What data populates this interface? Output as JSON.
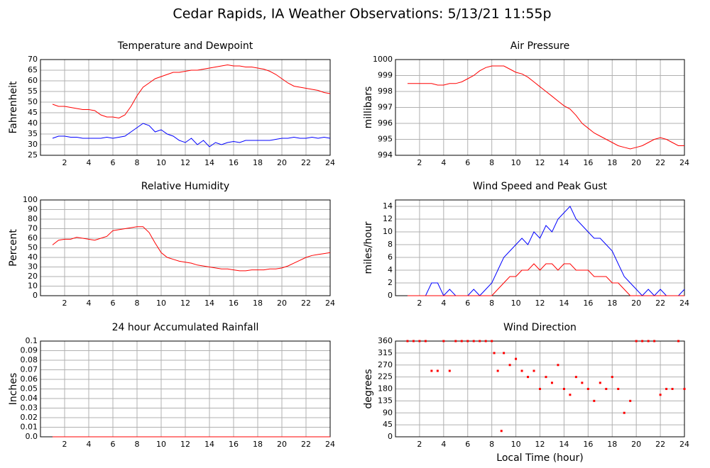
{
  "title": "Cedar Rapids, IA Weather Observations: 5/13/21 11:55p",
  "chart_data": [
    {
      "type": "line",
      "title": "Temperature and Dewpoint",
      "ylabel": "Fahrenheit",
      "x": [
        1,
        1.5,
        2,
        2.5,
        3,
        3.5,
        4,
        4.5,
        5,
        5.5,
        6,
        6.5,
        7,
        7.5,
        8,
        8.5,
        9,
        9.5,
        10,
        10.5,
        11,
        11.5,
        12,
        12.5,
        13,
        13.5,
        14,
        14.5,
        15,
        15.5,
        16,
        16.5,
        17,
        17.5,
        18,
        18.5,
        19,
        19.5,
        20,
        20.5,
        21,
        21.5,
        22,
        22.5,
        23,
        23.5,
        24
      ],
      "series": [
        {
          "color": "#ff0000",
          "values": [
            49,
            48,
            48,
            47.5,
            47,
            46.5,
            46.5,
            46,
            44,
            43,
            43,
            42.5,
            44,
            48,
            53,
            57,
            59,
            61,
            62,
            63,
            64,
            64,
            64.5,
            65,
            65,
            65.5,
            66,
            66.5,
            67,
            67.5,
            67,
            67,
            66.5,
            66.5,
            66,
            65.5,
            64.5,
            63,
            61,
            59,
            57.5,
            57,
            56.5,
            56,
            55.5,
            54.5,
            54
          ]
        },
        {
          "color": "#0000ff",
          "values": [
            33,
            34,
            34,
            33.5,
            33.5,
            33,
            33,
            33,
            33,
            33.5,
            33,
            33.5,
            34,
            36,
            38,
            40,
            39,
            36,
            37,
            35,
            34,
            32,
            31,
            33,
            30,
            32,
            29,
            31,
            30,
            31,
            31.5,
            31,
            32,
            32,
            32,
            32,
            32,
            32.5,
            33,
            33,
            33.5,
            33,
            33,
            33.5,
            33,
            33.5,
            33
          ]
        }
      ],
      "xlim": [
        0,
        24
      ],
      "xticks": [
        2,
        4,
        6,
        8,
        10,
        12,
        14,
        16,
        18,
        20,
        22,
        24
      ],
      "ylim": [
        25,
        70
      ],
      "yticks": [
        25,
        30,
        35,
        40,
        45,
        50,
        55,
        60,
        65,
        70
      ],
      "grid": true
    },
    {
      "type": "line",
      "title": "Air Pressure",
      "ylabel": "millibars",
      "x": [
        1,
        1.5,
        2,
        2.5,
        3,
        3.5,
        4,
        4.5,
        5,
        5.5,
        6,
        6.5,
        7,
        7.5,
        8,
        8.5,
        9,
        9.5,
        10,
        10.5,
        11,
        11.5,
        12,
        12.5,
        13,
        13.5,
        14,
        14.5,
        15,
        15.5,
        16,
        16.5,
        17,
        17.5,
        18,
        18.5,
        19,
        19.5,
        20,
        20.5,
        21,
        21.5,
        22,
        22.5,
        23,
        23.5,
        24
      ],
      "series": [
        {
          "color": "#ff0000",
          "values": [
            998.5,
            998.5,
            998.5,
            998.5,
            998.5,
            998.4,
            998.4,
            998.5,
            998.5,
            998.6,
            998.8,
            999.0,
            999.3,
            999.5,
            999.6,
            999.6,
            999.6,
            999.4,
            999.2,
            999.1,
            998.9,
            998.6,
            998.3,
            998.0,
            997.7,
            997.4,
            997.1,
            996.9,
            996.5,
            996.0,
            995.7,
            995.4,
            995.2,
            995.0,
            994.8,
            994.6,
            994.5,
            994.4,
            994.5,
            994.6,
            994.8,
            995.0,
            995.1,
            995.0,
            994.8,
            994.6,
            994.6
          ]
        }
      ],
      "xlim": [
        0,
        24
      ],
      "xticks": [
        2,
        4,
        6,
        8,
        10,
        12,
        14,
        16,
        18,
        20,
        22,
        24
      ],
      "ylim": [
        994,
        1000
      ],
      "yticks": [
        994,
        995,
        996,
        997,
        998,
        999,
        1000
      ],
      "grid": true
    },
    {
      "type": "line",
      "title": "Relative Humidity",
      "ylabel": "Percent",
      "x": [
        1,
        1.5,
        2,
        2.5,
        3,
        3.5,
        4,
        4.5,
        5,
        5.5,
        6,
        6.5,
        7,
        7.5,
        8,
        8.5,
        9,
        9.5,
        10,
        10.5,
        11,
        11.5,
        12,
        12.5,
        13,
        13.5,
        14,
        14.5,
        15,
        15.5,
        16,
        16.5,
        17,
        17.5,
        18,
        18.5,
        19,
        19.5,
        20,
        20.5,
        21,
        21.5,
        22,
        22.5,
        23,
        23.5,
        24
      ],
      "series": [
        {
          "color": "#ff0000",
          "values": [
            53,
            58,
            59,
            59,
            61,
            60,
            59,
            58,
            60,
            62,
            68,
            69,
            70,
            71,
            72,
            72,
            66,
            55,
            45,
            40,
            38,
            36,
            35,
            34,
            32,
            31,
            30,
            29,
            28,
            28,
            27,
            26,
            26,
            27,
            27,
            27,
            28,
            28,
            29,
            31,
            34,
            37,
            40,
            42,
            43,
            44,
            45
          ]
        }
      ],
      "xlim": [
        0,
        24
      ],
      "xticks": [
        2,
        4,
        6,
        8,
        10,
        12,
        14,
        16,
        18,
        20,
        22,
        24
      ],
      "ylim": [
        0,
        100
      ],
      "yticks": [
        0,
        10,
        20,
        30,
        40,
        50,
        60,
        70,
        80,
        90,
        100
      ],
      "grid": true
    },
    {
      "type": "line",
      "title": "Wind Speed and Peak Gust",
      "ylabel": "miles/hour",
      "x": [
        1,
        1.5,
        2,
        2.5,
        3,
        3.5,
        4,
        4.5,
        5,
        5.5,
        6,
        6.5,
        7,
        7.5,
        8,
        8.5,
        9,
        9.5,
        10,
        10.5,
        11,
        11.5,
        12,
        12.5,
        13,
        13.5,
        14,
        14.5,
        15,
        15.5,
        16,
        16.5,
        17,
        17.5,
        18,
        18.5,
        19,
        19.5,
        20,
        20.5,
        21,
        21.5,
        22,
        22.5,
        23,
        23.5,
        24
      ],
      "series": [
        {
          "color": "#0000ff",
          "values": [
            0,
            0,
            0,
            0,
            2,
            2,
            0,
            1,
            0,
            0,
            0,
            1,
            0,
            1,
            2,
            4,
            6,
            7,
            8,
            9,
            8,
            10,
            9,
            11,
            10,
            12,
            13,
            14,
            12,
            11,
            10,
            9,
            9,
            8,
            7,
            5,
            3,
            2,
            1,
            0,
            1,
            0,
            1,
            0,
            0,
            0,
            1
          ]
        },
        {
          "color": "#ff0000",
          "values": [
            0,
            0,
            0,
            0,
            0,
            0,
            0,
            0,
            0,
            0,
            0,
            0,
            0,
            0,
            0,
            1,
            2,
            3,
            3,
            4,
            4,
            5,
            4,
            5,
            5,
            4,
            5,
            5,
            4,
            4,
            4,
            3,
            3,
            3,
            2,
            2,
            1,
            0,
            0,
            0,
            0,
            0,
            0,
            0,
            0,
            0,
            0
          ]
        }
      ],
      "xlim": [
        0,
        24
      ],
      "xticks": [
        2,
        4,
        6,
        8,
        10,
        12,
        14,
        16,
        18,
        20,
        22,
        24
      ],
      "ylim": [
        0,
        15
      ],
      "yticks": [
        0,
        2,
        4,
        6,
        8,
        10,
        12,
        14
      ],
      "grid": true
    },
    {
      "type": "line",
      "title": "24 hour Accumulated Rainfall",
      "ylabel": "Inches",
      "x": [
        1,
        24
      ],
      "series": [
        {
          "color": "#ff0000",
          "values": [
            0,
            0
          ]
        }
      ],
      "xlim": [
        0,
        24
      ],
      "xticks": [
        2,
        4,
        6,
        8,
        10,
        12,
        14,
        16,
        18,
        20,
        22,
        24
      ],
      "ylim": [
        0,
        0.1
      ],
      "yticks": [
        {
          "value": 0,
          "label": "0.0"
        },
        0.01,
        0.02,
        0.03,
        0.04,
        0.05,
        0.06,
        0.07,
        0.08,
        0.09,
        0.1
      ],
      "grid": true
    },
    {
      "type": "scatter",
      "title": "Wind Direction",
      "ylabel": "degrees",
      "xlabel": "Local Time (hour)",
      "x": [
        1,
        1.5,
        2,
        2.5,
        3,
        3.5,
        4,
        4.5,
        5,
        5.5,
        6,
        6.5,
        7,
        7.5,
        8,
        8.2,
        8.5,
        8.8,
        9,
        9.5,
        10,
        10.5,
        11,
        11.5,
        12,
        12.5,
        13,
        13.5,
        14,
        14.5,
        15,
        15.5,
        16,
        16.5,
        17,
        17.5,
        18,
        18.5,
        19,
        19.5,
        20,
        20.5,
        21,
        21.5,
        22,
        22.5,
        23,
        23.5,
        24
      ],
      "series": [
        {
          "color": "#ff0000",
          "values": [
            360,
            360,
            360,
            360,
            248,
            248,
            360,
            248,
            360,
            360,
            360,
            360,
            360,
            360,
            360,
            315,
            248,
            22,
            315,
            270,
            293,
            248,
            225,
            248,
            180,
            225,
            203,
            270,
            180,
            158,
            225,
            203,
            180,
            135,
            203,
            180,
            225,
            180,
            90,
            135,
            360,
            360,
            360,
            360,
            158,
            180,
            180,
            360,
            180
          ]
        }
      ],
      "xlim": [
        0,
        24
      ],
      "xticks": [
        2,
        4,
        6,
        8,
        10,
        12,
        14,
        16,
        18,
        20,
        22,
        24
      ],
      "ylim": [
        0,
        360
      ],
      "yticks": [
        0,
        45,
        90,
        135,
        180,
        225,
        270,
        315,
        360
      ],
      "grid": true
    }
  ]
}
